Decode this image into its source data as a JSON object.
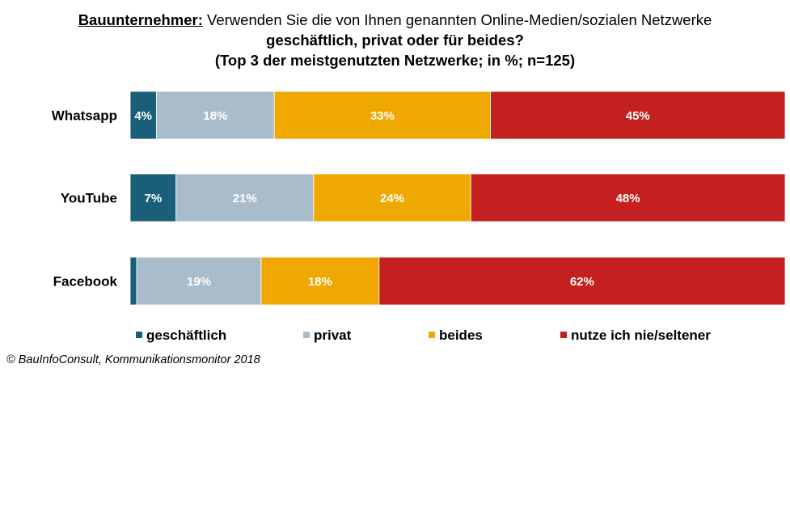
{
  "title": {
    "lead": "Bauunternehmer:",
    "line1_rest": "Verwenden Sie die von Ihnen genannten Online-Medien/sozialen Netzwerke",
    "line2": "geschäftlich, privat oder für beides?",
    "line3": "(Top 3 der meistgenutzten Netzwerke; in %; n=125)"
  },
  "source": "© BauInfoConsult, Kommunikationsmonitor 2018",
  "chart_data": {
    "type": "bar",
    "orientation": "horizontal",
    "stacked": true,
    "categories": [
      "Whatsapp",
      "YouTube",
      "Facebook"
    ],
    "series": [
      {
        "name": "geschäftlich",
        "color": "#1a5f7a",
        "values": [
          4,
          7,
          1
        ],
        "labels": [
          "4%",
          "7%",
          ""
        ]
      },
      {
        "name": "privat",
        "color": "#a9bccb",
        "values": [
          18,
          21,
          19
        ],
        "labels": [
          "18%",
          "21%",
          "19%"
        ]
      },
      {
        "name": "beides",
        "color": "#efa800",
        "values": [
          33,
          24,
          18
        ],
        "labels": [
          "33%",
          "24%",
          "18%"
        ]
      },
      {
        "name": "nutze ich nie/seltener",
        "color": "#c3201f",
        "values": [
          45,
          48,
          62
        ],
        "labels": [
          "45%",
          "48%",
          "62%"
        ]
      }
    ],
    "xlim": [
      0,
      100
    ],
    "legend": "bottom"
  }
}
